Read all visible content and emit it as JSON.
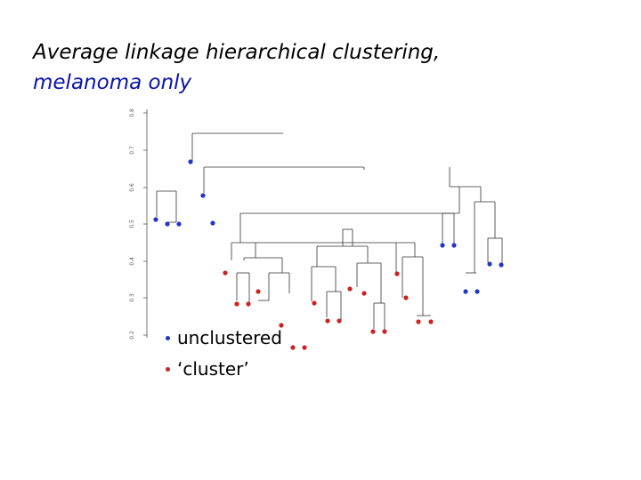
{
  "title": {
    "line1": "Average linkage hierarchical clustering,",
    "line2": "melanoma only"
  },
  "axis": {
    "ticks": [
      "0.8",
      "0.7",
      "0.6",
      "0.5",
      "0.4",
      "0.3",
      "0.2"
    ]
  },
  "legend": {
    "unclustered_label": "unclustered",
    "cluster_label": "‘cluster’"
  },
  "colors": {
    "title_accent": "#0a12a8",
    "unclustered": "#1f36c8",
    "cluster": "#cc2222",
    "branch": "#333333"
  }
}
